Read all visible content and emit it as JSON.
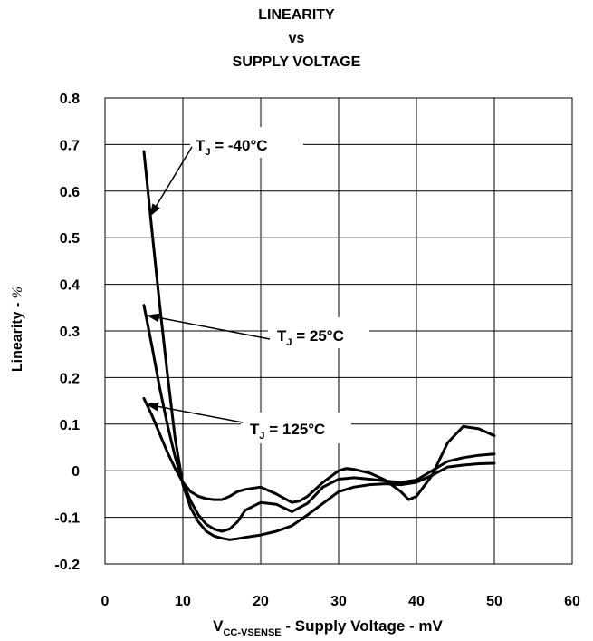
{
  "chart_data": {
    "type": "line",
    "title": [
      "LINEARITY",
      "vs",
      "SUPPLY VOLTAGE"
    ],
    "xlabel": {
      "main": "V",
      "sub": "CC-VSENSE",
      "rest": " - Supply Voltage - mV"
    },
    "ylabel": {
      "text": "Linearity - ",
      "unit": "%"
    },
    "xlim": [
      0,
      60
    ],
    "ylim": [
      -0.2,
      0.8
    ],
    "xticks": [
      "0",
      "10",
      "20",
      "30",
      "40",
      "50",
      "60"
    ],
    "yticks": [
      "0.8",
      "0.7",
      "0.6",
      "0.5",
      "0.4",
      "0.3",
      "0.2",
      "0.1",
      "0",
      "-0.1",
      "-0.2"
    ],
    "grid": true,
    "series": [
      {
        "name": "T_J = -40°C",
        "label": {
          "main": "T",
          "sub": "J",
          "rest": " = -40°C"
        },
        "x": [
          5,
          6,
          7,
          8,
          9,
          10,
          11,
          12,
          13,
          14,
          15,
          16,
          17,
          18,
          20,
          22,
          24,
          26,
          28,
          30,
          32,
          34,
          36,
          38,
          40,
          42,
          44,
          46,
          48,
          50
        ],
        "y": [
          0.685,
          0.52,
          0.36,
          0.21,
          0.07,
          -0.03,
          -0.08,
          -0.11,
          -0.13,
          -0.14,
          -0.145,
          -0.148,
          -0.146,
          -0.143,
          -0.138,
          -0.13,
          -0.118,
          -0.095,
          -0.07,
          -0.045,
          -0.035,
          -0.03,
          -0.028,
          -0.03,
          -0.025,
          -0.01,
          0.008,
          0.012,
          0.015,
          0.016
        ]
      },
      {
        "name": "T_J = 25°C",
        "label": {
          "main": "T",
          "sub": "J",
          "rest": " = 25°C"
        },
        "x": [
          5,
          6,
          7,
          8,
          9,
          10,
          11,
          12,
          13,
          14,
          15,
          16,
          17,
          18,
          20,
          22,
          24,
          26,
          28,
          30,
          32,
          34,
          36,
          38,
          40,
          42,
          44,
          46,
          48,
          50
        ],
        "y": [
          0.355,
          0.27,
          0.18,
          0.1,
          0.03,
          -0.025,
          -0.065,
          -0.095,
          -0.115,
          -0.125,
          -0.13,
          -0.125,
          -0.11,
          -0.085,
          -0.068,
          -0.072,
          -0.088,
          -0.07,
          -0.035,
          -0.018,
          -0.015,
          -0.018,
          -0.022,
          -0.025,
          -0.02,
          0.0,
          0.02,
          0.028,
          0.033,
          0.036
        ]
      },
      {
        "name": "T_J = 125°C",
        "label": {
          "main": "T",
          "sub": "J",
          "rest": " = 125°C"
        },
        "x": [
          5,
          6,
          7,
          8,
          9,
          10,
          11,
          12,
          13,
          14,
          15,
          16,
          17,
          18,
          20,
          22,
          24,
          25,
          26,
          28,
          30,
          31,
          32,
          34,
          36,
          38,
          39,
          40,
          42,
          44,
          46,
          48,
          50
        ],
        "y": [
          0.155,
          0.12,
          0.08,
          0.04,
          0.005,
          -0.025,
          -0.045,
          -0.055,
          -0.06,
          -0.062,
          -0.062,
          -0.055,
          -0.045,
          -0.04,
          -0.035,
          -0.05,
          -0.068,
          -0.065,
          -0.055,
          -0.025,
          0.0,
          0.005,
          0.003,
          -0.005,
          -0.02,
          -0.045,
          -0.062,
          -0.055,
          -0.01,
          0.06,
          0.095,
          0.09,
          0.075
        ]
      }
    ]
  }
}
